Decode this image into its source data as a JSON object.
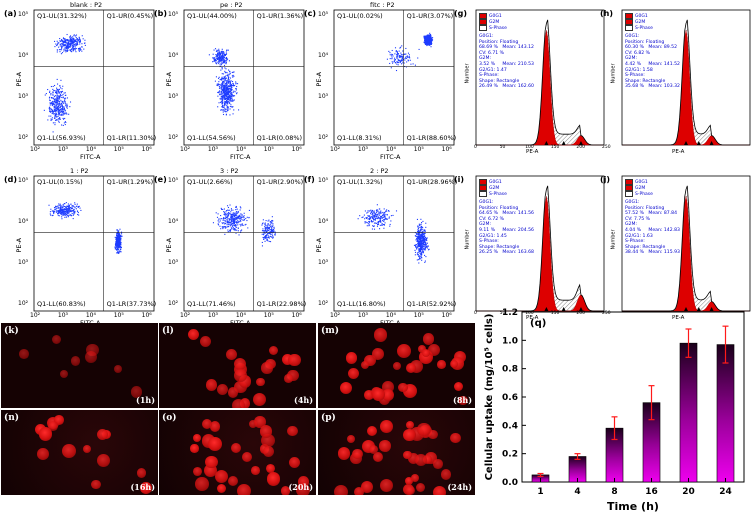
{
  "flow_panels": [
    {
      "id": "(a)",
      "title": "blank : P2",
      "ul": "Q1-UL(31.32%)",
      "ur": "Q1-UR(0.45%)",
      "ll": "Q1-LL(56.93%)",
      "lr": "Q1-LR(11.30%)",
      "xlabel": "FITC-A",
      "ylabel": "PE-A"
    },
    {
      "id": "(b)",
      "title": "pe : P2",
      "ul": "Q1-UL(44.00%)",
      "ur": "Q1-UR(1.36%)",
      "ll": "Q1-LL(54.56%)",
      "lr": "Q1-LR(0.08%)",
      "xlabel": "FITC-A",
      "ylabel": "PE-A"
    },
    {
      "id": "(c)",
      "title": "fitc : P2",
      "ul": "Q1-UL(0.02%)",
      "ur": "Q1-UR(3.07%)",
      "ll": "Q1-LL(8.31%)",
      "lr": "Q1-LR(88.60%)",
      "xlabel": "FITC-A",
      "ylabel": "PE-A"
    },
    {
      "id": "(d)",
      "title": "1 : P2",
      "ul": "Q1-UL(0.15%)",
      "ur": "Q1-UR(1.29%)",
      "ll": "Q1-LL(60.83%)",
      "lr": "Q1-LR(37.73%)",
      "xlabel": "FITC-A",
      "ylabel": "PE-A"
    },
    {
      "id": "(e)",
      "title": "3 : P2",
      "ul": "Q1-UL(2.66%)",
      "ur": "Q1-UR(2.90%)",
      "ll": "Q1-LL(71.46%)",
      "lr": "Q1-LR(22.98%)",
      "xlabel": "FITC-A",
      "ylabel": "PE-A"
    },
    {
      "id": "(f)",
      "title": "2 : P2",
      "ul": "Q1-UL(1.32%)",
      "ur": "Q1-UR(28.96%)",
      "ll": "Q1-LL(16.80%)",
      "lr": "Q1-LR(52.92%)",
      "xlabel": "FITC-A",
      "ylabel": "PE-A"
    }
  ],
  "flow_ticks_x": [
    "10²",
    "10³",
    "10⁴",
    "10⁵",
    "10⁶"
  ],
  "flow_ticks_y": [
    "10²",
    "10³",
    "10⁴",
    "10⁵"
  ],
  "cc_panels": [
    {
      "id": "(g)",
      "lines": [
        "G0G1:",
        "Position: Floating",
        "68.69 %   Mean: 143.12",
        "CV: 6.71 %",
        "G2M:",
        "3.52 %     Mean: 210.53",
        "G2/G1: 1.47",
        "S-Phase:",
        "Shape: Rectangle",
        "26.49 %   Mean: 162.60"
      ]
    },
    {
      "id": "(h)",
      "lines": [
        "G0G1:",
        "Position: Floating",
        "60.30 %   Mean: 89.52",
        "CV: 6.82 %",
        "G2M:",
        "4.42 %     Mean: 141.52",
        "G2/G1: 1.58",
        "S-Phase:",
        "Shape: Rectangle",
        "35.68 %   Mean: 103.32"
      ]
    },
    {
      "id": "(i)",
      "lines": [
        "G0G1:",
        "Position: Floating",
        "64.65 %   Mean: 141.56",
        "CV: 6.72 %",
        "G2M:",
        "9.11 %     Mean: 204.56",
        "G2/G1: 1.45",
        "S-Phase:",
        "Shape: Rectangle",
        "26.25 %   Mean: 163.68"
      ]
    },
    {
      "id": "(j)",
      "lines": [
        "G0G1:",
        "Position: Floating",
        "57.52 %   Mean: 87.84",
        "CV: 7.75 %",
        "G2M:",
        "4.04 %     Mean: 142.83",
        "G2/G1: 1.63",
        "S-Phase:",
        "Shape: Rectangle",
        "38.44 %   Mean: 115.93"
      ]
    }
  ],
  "cc_legend": [
    "G0G1",
    "G2M",
    "S-Phase"
  ],
  "cc_xlabel": "PE-A",
  "cc_ylabel": "Number",
  "cc_xticks_gi": [
    "0",
    "50",
    "100",
    "150",
    "200",
    "250"
  ],
  "micro_panels": [
    {
      "id": "(k)",
      "time": "(1h)"
    },
    {
      "id": "(l)",
      "time": "(4h)"
    },
    {
      "id": "(m)",
      "time": "(8h)"
    },
    {
      "id": "(n)",
      "time": "(16h)"
    },
    {
      "id": "(o)",
      "time": "(20h)"
    },
    {
      "id": "(p)",
      "time": "(24h)"
    }
  ],
  "colors": {
    "accent_bar": "#ee00ee",
    "error_bar": "#ff1a1a",
    "scatter": "#1e3cff",
    "histogram": "#dd0000"
  },
  "chart_data": {
    "type": "bar",
    "panel": "(q)",
    "categories": [
      "1",
      "4",
      "8",
      "16",
      "20",
      "24"
    ],
    "values": [
      0.05,
      0.18,
      0.38,
      0.56,
      0.98,
      0.97
    ],
    "errors": [
      0.01,
      0.02,
      0.08,
      0.12,
      0.1,
      0.13
    ],
    "xlabel": "Time (h)",
    "ylabel": "Cellular uptake (mg/10⁵ cells)",
    "ylim": [
      0,
      1.2
    ],
    "yticks": [
      "0.0",
      "0.2",
      "0.4",
      "0.6",
      "0.8",
      "1.0",
      "1.2"
    ]
  }
}
